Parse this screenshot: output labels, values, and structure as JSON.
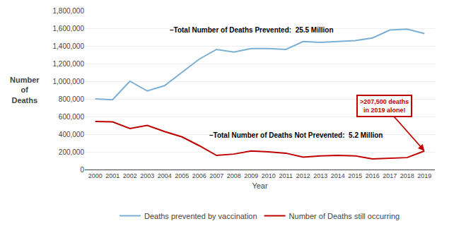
{
  "chart_data": {
    "type": "line",
    "x": [
      2000,
      2001,
      2002,
      2003,
      2004,
      2005,
      2006,
      2007,
      2008,
      2009,
      2010,
      2011,
      2012,
      2013,
      2014,
      2015,
      2016,
      2017,
      2018,
      2019
    ],
    "series": [
      {
        "name": "Deaths prevented by vaccination",
        "color": "#7bafd4",
        "values": [
          800000,
          790000,
          1000000,
          890000,
          950000,
          1100000,
          1250000,
          1360000,
          1330000,
          1370000,
          1370000,
          1360000,
          1450000,
          1440000,
          1450000,
          1460000,
          1490000,
          1580000,
          1590000,
          1540000
        ]
      },
      {
        "name": "Number of Deaths still occurring",
        "color": "#c00000",
        "values": [
          545000,
          540000,
          465000,
          500000,
          430000,
          370000,
          270000,
          160000,
          175000,
          210000,
          200000,
          185000,
          140000,
          155000,
          160000,
          155000,
          120000,
          130000,
          135000,
          210000
        ]
      }
    ],
    "xlabel": "Year",
    "ylabel": "Number\nof\nDeaths",
    "xlim": [
      1999.4,
      2019.6
    ],
    "xticks": [
      2000,
      2001,
      2002,
      2003,
      2004,
      2005,
      2006,
      2007,
      2008,
      2009,
      2010,
      2011,
      2012,
      2013,
      2014,
      2015,
      2016,
      2017,
      2018,
      2019
    ],
    "ylim": [
      0,
      1800000
    ],
    "yticks": [
      0,
      {
        "value": 200000,
        "label": "200,000"
      },
      {
        "value": 400000,
        "label": "400,000"
      },
      {
        "value": 600000,
        "label": "600,000"
      },
      {
        "value": 800000,
        "label": "800,000"
      },
      {
        "value": 1000000,
        "label": "1,000,000"
      },
      {
        "value": 1200000,
        "label": "1,200,000"
      },
      {
        "value": 1400000,
        "label": "1,400,000"
      },
      {
        "value": 1600000,
        "label": "1,600,000"
      },
      {
        "value": 1800000,
        "label": "1,800,000"
      }
    ],
    "annotations": [
      "–Total Number of Deaths Prevented:  25.5 Million",
      "–Total Number of Deaths Not Prevented:  5.2 Million",
      ">207,500 deaths\nin 2019 alone!"
    ],
    "grid": true,
    "legend": "bottom"
  }
}
